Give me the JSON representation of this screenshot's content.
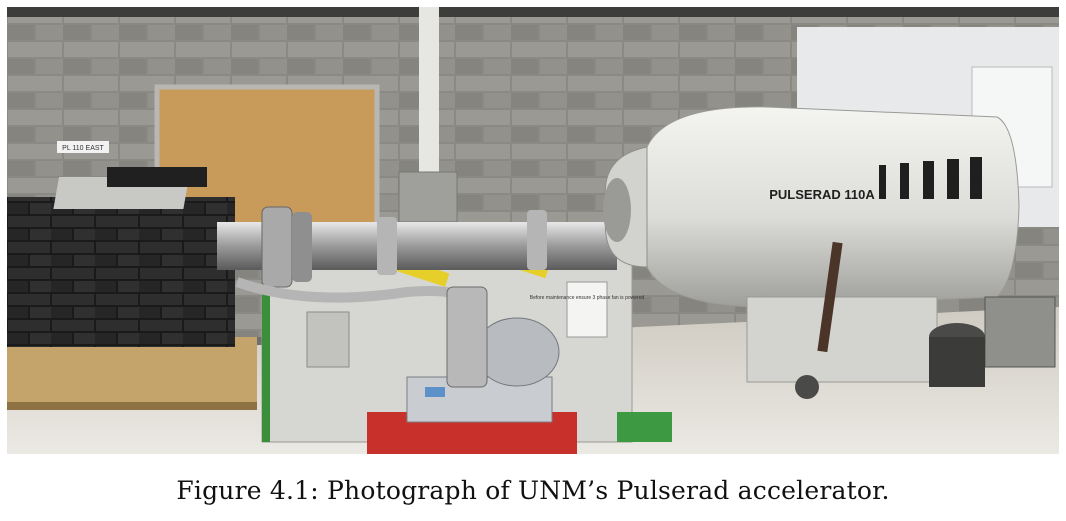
{
  "figure": {
    "caption": "Figure 4.1: Photograph of UNM’s Pulserad accelerator."
  },
  "photo": {
    "machine_label": "PULSERAD 110A",
    "wall_sign": "PL 110 EAST",
    "notice": "Before maintenance ensure 3 phase fan is powered",
    "subject": "Pulserad accelerator in laboratory"
  },
  "colors": {
    "tank": "#e4e4e0",
    "brick_wall": "#8e8d88",
    "lead_bricks": "#262626",
    "cabinet": "#dcdcda",
    "cart": "#c8302b",
    "floor": "#d9d6cf"
  }
}
